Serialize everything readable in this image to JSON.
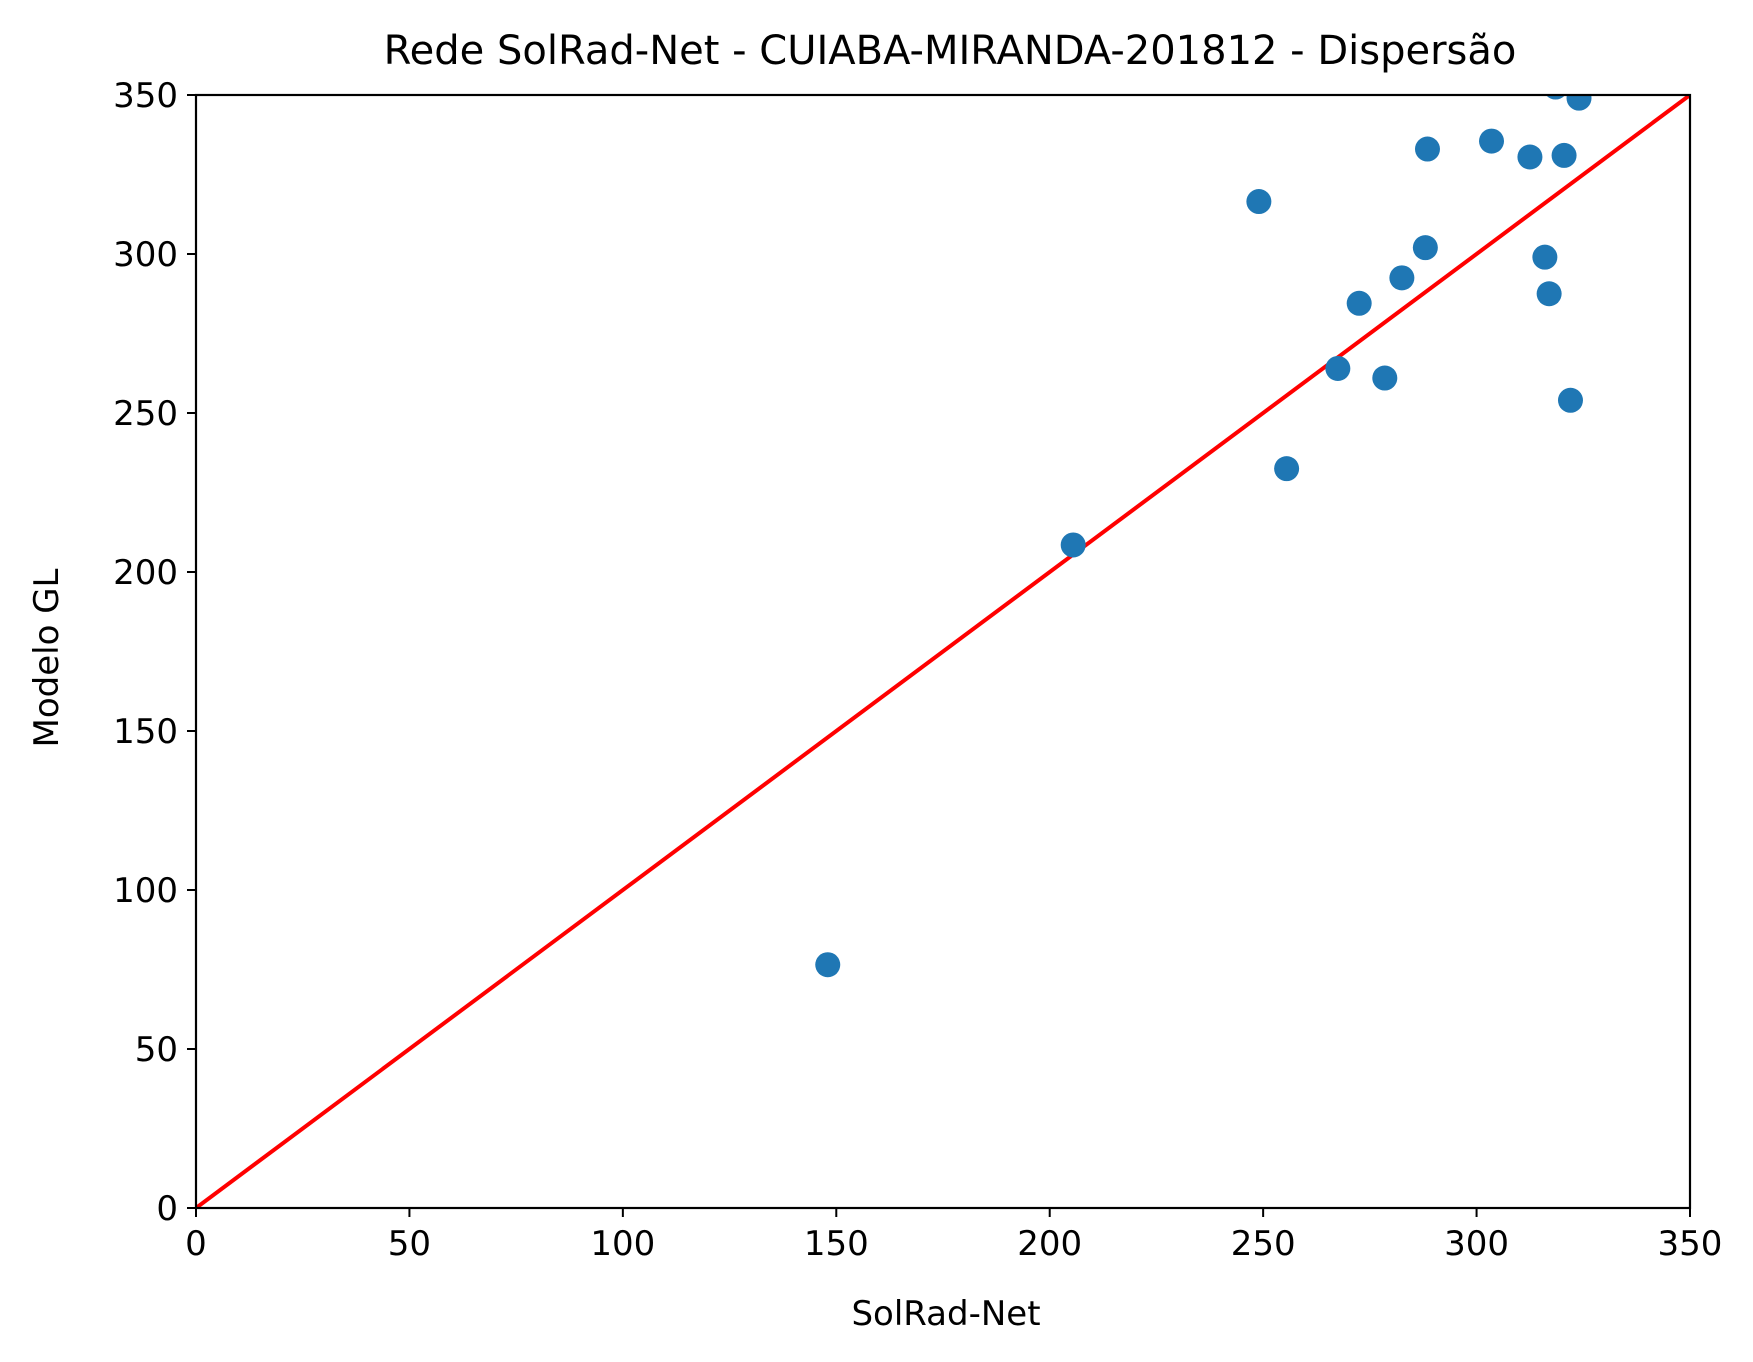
{
  "chart_data": {
    "type": "scatter",
    "title": "Rede SolRad-Net - CUIABA-MIRANDA-201812 - Dispersão",
    "xlabel": "SolRad-Net",
    "ylabel": "Modelo GL",
    "xlim": [
      0,
      350
    ],
    "ylim": [
      0,
      350
    ],
    "xticks": [
      0,
      50,
      100,
      150,
      200,
      250,
      300,
      350
    ],
    "yticks": [
      0,
      50,
      100,
      150,
      200,
      250,
      300,
      350
    ],
    "grid": false,
    "legend": "none",
    "series": [
      {
        "color": "#1f77b4",
        "points": [
          {
            "x": 148.0,
            "y": 76.5
          },
          {
            "x": 205.5,
            "y": 208.5
          },
          {
            "x": 249.0,
            "y": 316.5
          },
          {
            "x": 255.5,
            "y": 232.5
          },
          {
            "x": 267.5,
            "y": 264.0
          },
          {
            "x": 272.5,
            "y": 284.5
          },
          {
            "x": 278.5,
            "y": 261.0
          },
          {
            "x": 282.5,
            "y": 292.5
          },
          {
            "x": 288.0,
            "y": 302.0
          },
          {
            "x": 288.5,
            "y": 333.0
          },
          {
            "x": 303.5,
            "y": 335.5
          },
          {
            "x": 312.5,
            "y": 330.5
          },
          {
            "x": 316.0,
            "y": 299.0
          },
          {
            "x": 317.0,
            "y": 287.5
          },
          {
            "x": 318.5,
            "y": 352.5
          },
          {
            "x": 320.5,
            "y": 331.0
          },
          {
            "x": 322.0,
            "y": 254.0
          },
          {
            "x": 324.0,
            "y": 349.0
          }
        ]
      }
    ],
    "reference_line": {
      "from": [
        0,
        0
      ],
      "to": [
        350,
        350
      ],
      "color": "#ff0000"
    }
  }
}
